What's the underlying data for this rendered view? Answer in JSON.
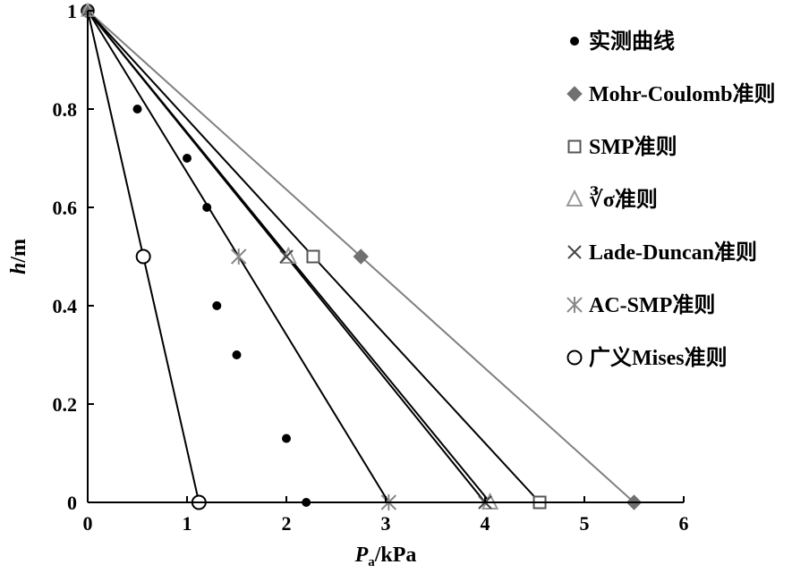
{
  "chart_data": {
    "type": "line",
    "xlabel": {
      "main": "P",
      "sub": "a",
      "unit": "/kPa"
    },
    "ylabel": {
      "main": "h",
      "unit": "/m"
    },
    "xlim": [
      0,
      6
    ],
    "ylim": [
      0,
      1
    ],
    "xticks": [
      "0",
      "1",
      "2",
      "3",
      "4",
      "5",
      "6"
    ],
    "yticks": [
      "0",
      "0.2",
      "0.4",
      "0.6",
      "0.8",
      "1"
    ],
    "grid": false,
    "legend_position": "right",
    "series": [
      {
        "name": "实测曲线",
        "kind": "scatter",
        "marker": "dot",
        "color": "#000000",
        "points": [
          [
            0.5,
            0.8
          ],
          [
            1.0,
            0.7
          ],
          [
            1.2,
            0.6
          ],
          [
            1.3,
            0.4
          ],
          [
            1.5,
            0.3
          ],
          [
            2.0,
            0.13
          ],
          [
            2.2,
            0.0
          ]
        ]
      },
      {
        "name": "Mohr-Coulomb准则",
        "kind": "line",
        "marker": "diamond",
        "color": "#808080",
        "points": [
          [
            0,
            1.0
          ],
          [
            2.75,
            0.5
          ],
          [
            5.5,
            0.0
          ]
        ]
      },
      {
        "name": "SMP准则",
        "kind": "line",
        "marker": "square",
        "color": "#000000",
        "points": [
          [
            0,
            1.0
          ],
          [
            2.27,
            0.5
          ],
          [
            4.55,
            0.0
          ]
        ]
      },
      {
        "name": "∛σ准则",
        "kind": "line",
        "marker": "triangle",
        "color": "#000000",
        "points": [
          [
            0,
            1.0
          ],
          [
            2.02,
            0.5
          ],
          [
            4.05,
            0.0
          ]
        ]
      },
      {
        "name": "Lade-Duncan准则",
        "kind": "line",
        "marker": "x",
        "color": "#000000",
        "points": [
          [
            0,
            1.0
          ],
          [
            2.0,
            0.5
          ],
          [
            4.0,
            0.0
          ]
        ]
      },
      {
        "name": "AC-SMP准则",
        "kind": "line",
        "marker": "asterisk",
        "color": "#000000",
        "points": [
          [
            0,
            1.0
          ],
          [
            1.52,
            0.5
          ],
          [
            3.03,
            0.0
          ]
        ]
      },
      {
        "name": "广义Mises准则",
        "kind": "line",
        "marker": "circle",
        "color": "#000000",
        "points": [
          [
            0,
            1.0
          ],
          [
            0.56,
            0.5
          ],
          [
            1.12,
            0.0
          ]
        ]
      }
    ]
  }
}
